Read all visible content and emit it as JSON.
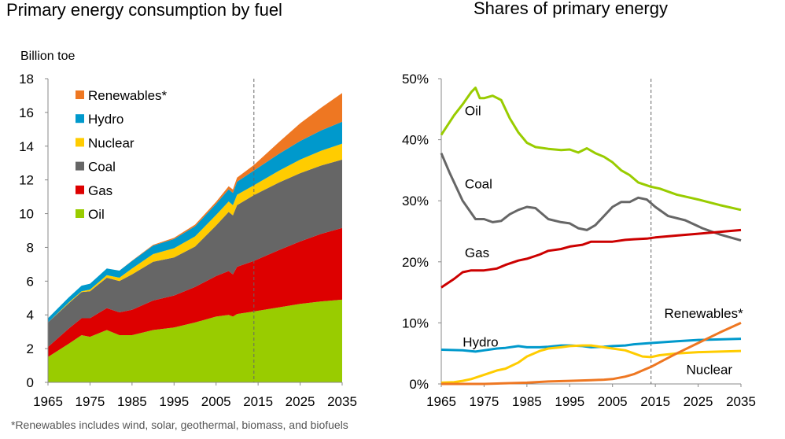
{
  "footnote": "*Renewables includes wind, solar, geothermal, biomass, and biofuels",
  "chart_data": [
    {
      "type": "area",
      "title": "Primary energy consumption by fuel",
      "ylabel": "Billion toe",
      "xlabel": "",
      "stacked": true,
      "x": [
        1965,
        1970,
        1973,
        1975,
        1979,
        1982,
        1985,
        1990,
        1995,
        2000,
        2005,
        2008,
        2009,
        2010,
        2014,
        2020,
        2025,
        2030,
        2035
      ],
      "xlim": [
        1965,
        2035
      ],
      "ylim": [
        0,
        18
      ],
      "xticks": [
        "1965",
        "1975",
        "1985",
        "1995",
        "2005",
        "2015",
        "2025",
        "2035"
      ],
      "yticks": [
        "0",
        "2",
        "4",
        "6",
        "8",
        "10",
        "12",
        "14",
        "16",
        "18"
      ],
      "forecast_line_x": 2014,
      "legend_position": "top-left",
      "series": [
        {
          "name": "Oil",
          "color": "#99cc00",
          "values": [
            1.5,
            2.3,
            2.8,
            2.7,
            3.1,
            2.8,
            2.8,
            3.1,
            3.25,
            3.55,
            3.9,
            4.0,
            3.9,
            4.05,
            4.2,
            4.45,
            4.65,
            4.8,
            4.9
          ]
        },
        {
          "name": "Gas",
          "color": "#dd0000",
          "values": [
            0.6,
            0.9,
            1.0,
            1.1,
            1.3,
            1.35,
            1.5,
            1.75,
            1.9,
            2.1,
            2.4,
            2.6,
            2.5,
            2.8,
            3.0,
            3.4,
            3.7,
            4.0,
            4.25
          ]
        },
        {
          "name": "Coal",
          "color": "#666666",
          "values": [
            1.45,
            1.5,
            1.55,
            1.6,
            1.8,
            1.85,
            2.1,
            2.3,
            2.25,
            2.4,
            3.0,
            3.5,
            3.5,
            3.65,
            3.9,
            4.0,
            4.05,
            4.05,
            4.05
          ]
        },
        {
          "name": "Nuclear",
          "color": "#ffcc00",
          "values": [
            0.0,
            0.05,
            0.05,
            0.1,
            0.15,
            0.2,
            0.35,
            0.45,
            0.55,
            0.6,
            0.62,
            0.62,
            0.6,
            0.62,
            0.58,
            0.7,
            0.8,
            0.88,
            0.95
          ]
        },
        {
          "name": "Hydro",
          "color": "#0099cc",
          "values": [
            0.25,
            0.3,
            0.33,
            0.35,
            0.4,
            0.42,
            0.45,
            0.5,
            0.55,
            0.6,
            0.66,
            0.72,
            0.73,
            0.77,
            0.88,
            1.0,
            1.1,
            1.2,
            1.3
          ]
        },
        {
          "name": "Renewables*",
          "color": "#ee7722",
          "values": [
            0.0,
            0.0,
            0.0,
            0.0,
            0.0,
            0.0,
            0.02,
            0.05,
            0.07,
            0.1,
            0.12,
            0.18,
            0.2,
            0.25,
            0.32,
            0.7,
            1.05,
            1.35,
            1.7
          ]
        }
      ]
    },
    {
      "type": "line",
      "title": "Shares of primary energy",
      "xlabel": "",
      "ylabel": "",
      "xlim": [
        1965,
        2035
      ],
      "ylim": [
        0,
        50
      ],
      "xticks": [
        "1965",
        "1975",
        "1985",
        "1995",
        "2005",
        "2015",
        "2025",
        "2035"
      ],
      "yticks": [
        "0%",
        "10%",
        "20%",
        "30%",
        "40%",
        "50%"
      ],
      "forecast_line_x": 2014,
      "series": [
        {
          "name": "Oil",
          "color": "#99cc00",
          "x": [
            1965,
            1968,
            1970,
            1972,
            1973,
            1974,
            1975,
            1977,
            1979,
            1981,
            1983,
            1985,
            1987,
            1990,
            1993,
            1995,
            1997,
            1999,
            2001,
            2003,
            2005,
            2007,
            2009,
            2011,
            2014,
            2016,
            2020,
            2025,
            2030,
            2035
          ],
          "y": [
            40.8,
            44.0,
            45.8,
            47.8,
            48.5,
            46.8,
            46.8,
            47.2,
            46.5,
            43.5,
            41.2,
            39.5,
            38.8,
            38.5,
            38.3,
            38.4,
            37.9,
            38.6,
            37.8,
            37.2,
            36.3,
            35.0,
            34.2,
            33.0,
            32.3,
            32.0,
            31.0,
            30.2,
            29.3,
            28.5
          ]
        },
        {
          "name": "Coal",
          "color": "#666666",
          "x": [
            1965,
            1967,
            1970,
            1973,
            1975,
            1977,
            1979,
            1981,
            1983,
            1985,
            1987,
            1990,
            1993,
            1995,
            1997,
            1999,
            2001,
            2003,
            2005,
            2007,
            2009,
            2011,
            2013,
            2015,
            2018,
            2022,
            2026,
            2030,
            2035
          ],
          "y": [
            37.8,
            34.5,
            30.0,
            27.0,
            27.0,
            26.5,
            26.7,
            27.8,
            28.5,
            29.0,
            28.8,
            27.0,
            26.5,
            26.3,
            25.5,
            25.2,
            26.0,
            27.5,
            29.0,
            29.8,
            29.8,
            30.5,
            30.2,
            29.0,
            27.5,
            26.8,
            25.5,
            24.5,
            23.5
          ]
        },
        {
          "name": "Gas",
          "color": "#cc0000",
          "x": [
            1965,
            1968,
            1970,
            1972,
            1975,
            1978,
            1980,
            1983,
            1985,
            1988,
            1990,
            1993,
            1995,
            1998,
            2000,
            2003,
            2005,
            2008,
            2010,
            2013,
            2015,
            2020,
            2025,
            2030,
            2035
          ],
          "y": [
            15.8,
            17.2,
            18.3,
            18.6,
            18.6,
            18.9,
            19.5,
            20.2,
            20.5,
            21.2,
            21.8,
            22.1,
            22.5,
            22.8,
            23.3,
            23.3,
            23.3,
            23.6,
            23.7,
            23.8,
            24.0,
            24.3,
            24.6,
            24.9,
            25.2
          ]
        },
        {
          "name": "Hydro",
          "color": "#0099cc",
          "x": [
            1965,
            1970,
            1973,
            1975,
            1978,
            1980,
            1983,
            1985,
            1988,
            1990,
            1993,
            1995,
            1998,
            2000,
            2003,
            2005,
            2008,
            2010,
            2014,
            2020,
            2025,
            2030,
            2035
          ],
          "y": [
            5.6,
            5.5,
            5.3,
            5.5,
            5.8,
            5.9,
            6.2,
            6.0,
            6.0,
            6.1,
            6.3,
            6.3,
            6.2,
            6.0,
            6.1,
            6.2,
            6.3,
            6.5,
            6.7,
            7.0,
            7.2,
            7.3,
            7.4
          ]
        },
        {
          "name": "Nuclear",
          "color": "#ffcc00",
          "x": [
            1965,
            1968,
            1970,
            1972,
            1975,
            1978,
            1980,
            1983,
            1985,
            1988,
            1990,
            1993,
            1995,
            1998,
            2000,
            2003,
            2005,
            2008,
            2010,
            2012,
            2014,
            2016,
            2020,
            2025,
            2030,
            2035
          ],
          "y": [
            0.2,
            0.3,
            0.5,
            0.8,
            1.5,
            2.2,
            2.5,
            3.5,
            4.5,
            5.4,
            5.8,
            6.0,
            6.2,
            6.3,
            6.3,
            6.0,
            5.8,
            5.5,
            5.0,
            4.5,
            4.4,
            4.7,
            5.0,
            5.2,
            5.3,
            5.4
          ]
        },
        {
          "name": "Renewables*",
          "color": "#ee7722",
          "x": [
            1965,
            1975,
            1985,
            1990,
            1995,
            2000,
            2003,
            2005,
            2008,
            2010,
            2012,
            2014,
            2017,
            2020,
            2025,
            2030,
            2035
          ],
          "y": [
            0.0,
            0.0,
            0.2,
            0.4,
            0.5,
            0.6,
            0.7,
            0.8,
            1.2,
            1.6,
            2.2,
            2.8,
            3.9,
            5.0,
            6.7,
            8.4,
            10.0
          ]
        }
      ],
      "labels": [
        {
          "series": "Oil",
          "text": "Oil"
        },
        {
          "series": "Coal",
          "text": "Coal"
        },
        {
          "series": "Gas",
          "text": "Gas"
        },
        {
          "series": "Hydro",
          "text": "Hydro"
        },
        {
          "series": "Renewables*",
          "text": "Renewables*"
        },
        {
          "series": "Nuclear",
          "text": "Nuclear"
        }
      ]
    }
  ]
}
